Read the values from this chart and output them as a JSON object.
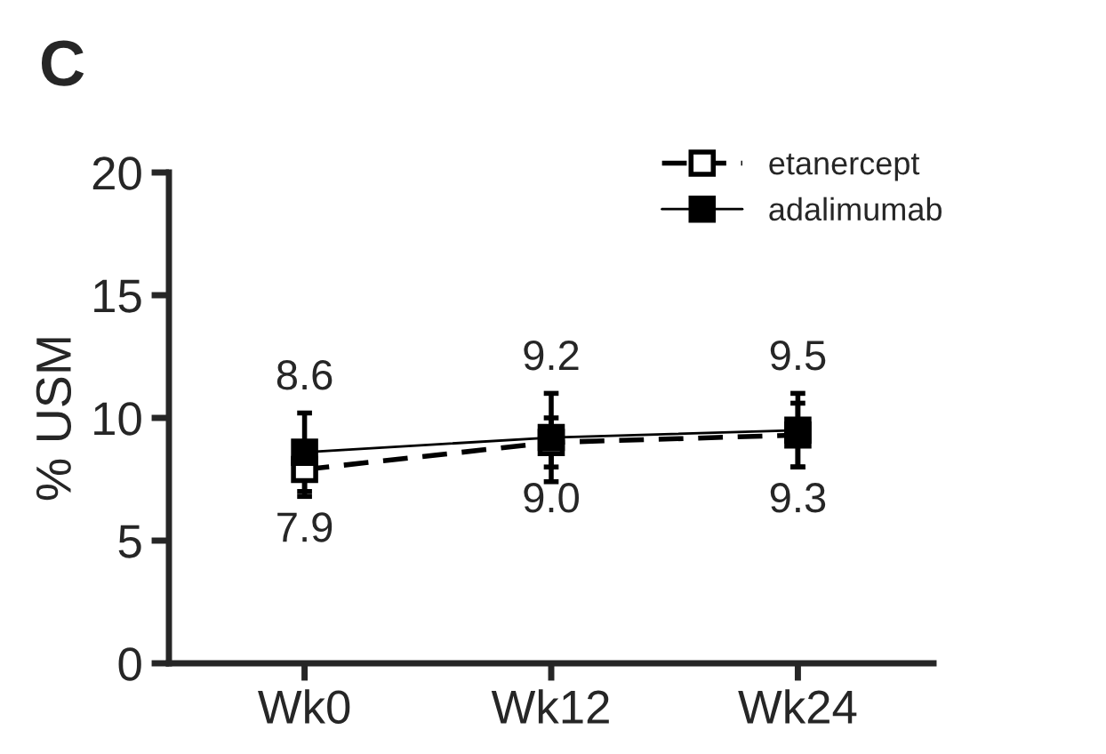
{
  "chart_data": {
    "type": "line",
    "title": "C",
    "ylabel": "% USM",
    "categories": [
      "Wk0",
      "Wk12",
      "Wk24"
    ],
    "series": [
      {
        "name": "etanercept",
        "color": "#000000",
        "line_style": "dashed",
        "values": [
          7.9,
          9.0,
          9.3
        ],
        "value_labels": [
          "7.9",
          "9.0",
          "9.3"
        ],
        "errors": [
          1.1,
          1.0,
          1.3
        ]
      },
      {
        "name": "adalimumab",
        "color": "#000000",
        "line_style": "solid",
        "values": [
          8.6,
          9.2,
          9.5
        ],
        "value_labels": [
          "8.6",
          "9.2",
          "9.5"
        ],
        "errors": [
          1.6,
          1.8,
          1.5
        ]
      }
    ],
    "ylim": [
      0,
      20
    ],
    "yticks": [
      0,
      5,
      10,
      15,
      20
    ],
    "marker": "square",
    "legend": "top right",
    "grid": false
  }
}
